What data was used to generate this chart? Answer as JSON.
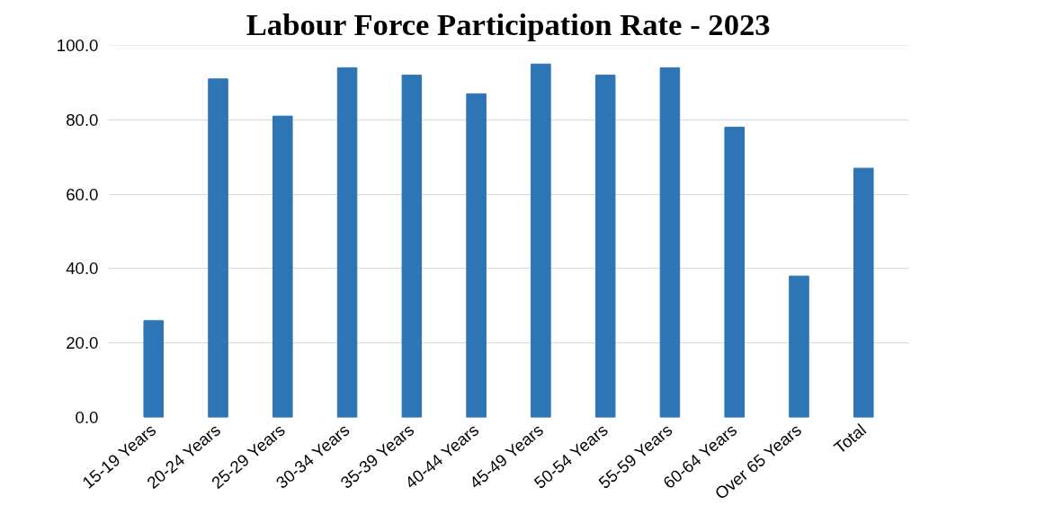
{
  "chart_data": {
    "type": "bar",
    "title": "Labour Force Participation Rate - 2023",
    "categories": [
      "15-19 Years",
      "20-24 Years",
      "25-29 Years",
      "30-34 Years",
      "35-39 Years",
      "40-44 Years",
      "45-49 Years",
      "50-54 Years",
      "55-59 Years",
      "60-64 Years",
      "Over 65 Years",
      "Total"
    ],
    "values": [
      26,
      91,
      81,
      94,
      92,
      87,
      95,
      92,
      94,
      78,
      38,
      67
    ],
    "color": "#2e75b6",
    "ylim": [
      0,
      100
    ],
    "yticks": [
      {
        "value": 0,
        "label": "0.0"
      },
      {
        "value": 20,
        "label": "20.0"
      },
      {
        "value": 40,
        "label": "40.0"
      },
      {
        "value": 60,
        "label": "60.0"
      },
      {
        "value": 80,
        "label": "80.0"
      },
      {
        "value": 100,
        "label": "100.0"
      }
    ],
    "grid": "y"
  }
}
